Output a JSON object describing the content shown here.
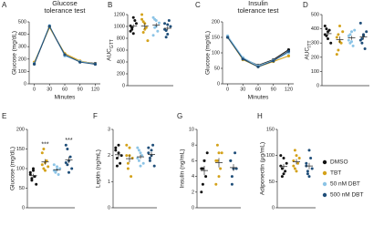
{
  "chart_data": [
    {
      "type": "line",
      "panel": "A",
      "title": [
        "Glucose",
        "tolerance test"
      ],
      "xlabel": "Minutes",
      "ylabel": "Glucose (mg/dL)",
      "x": [
        0,
        30,
        60,
        90,
        120
      ],
      "xlim": [
        -10,
        130
      ],
      "xticks": [
        0,
        30,
        60,
        90,
        120
      ],
      "ylim": [
        0,
        500
      ],
      "yticks": [
        0,
        100,
        200,
        300,
        400,
        500
      ],
      "series": [
        {
          "name": "DMSO",
          "color": "#111111",
          "values": [
            160,
            460,
            230,
            180,
            165
          ]
        },
        {
          "name": "TBT",
          "color": "#d4a21a",
          "values": [
            175,
            455,
            245,
            185,
            160
          ]
        },
        {
          "name": "50 nM DBT",
          "color": "#8cc4e6",
          "values": [
            165,
            470,
            225,
            180,
            160
          ]
        },
        {
          "name": "500 nM DBT",
          "color": "#1f4e79",
          "values": [
            160,
            465,
            235,
            175,
            158
          ]
        }
      ]
    },
    {
      "type": "dot",
      "panel": "B",
      "ylabel": "AUC",
      "ylabel_sub": "GTT",
      "ylim": [
        0,
        1200
      ],
      "yticks": [
        0,
        200,
        400,
        600,
        800,
        1000,
        1200
      ],
      "series": [
        {
          "color": "#111111",
          "values": [
            1010,
            950,
            880,
            1100,
            1050,
            920,
            980,
            1150
          ],
          "mean": 1005,
          "sem": 32
        },
        {
          "color": "#d4a21a",
          "values": [
            1200,
            900,
            1050,
            980,
            760,
            1120,
            1080,
            950
          ],
          "mean": 1005,
          "sem": 50
        },
        {
          "color": "#8cc4e6",
          "values": [
            1150,
            980,
            1100,
            920,
            1060,
            850,
            1120,
            1000
          ],
          "mean": 1022,
          "sem": 35
        },
        {
          "color": "#1f4e79",
          "values": [
            1050,
            930,
            870,
            1100,
            1000,
            950,
            820,
            1030
          ],
          "mean": 969,
          "sem": 32
        }
      ]
    },
    {
      "type": "line",
      "panel": "C",
      "title": [
        "Insulin",
        "tolerance test"
      ],
      "xlabel": "Minutes",
      "ylabel": "Glucose (mg/dL)",
      "x": [
        0,
        30,
        60,
        90,
        120
      ],
      "xlim": [
        -10,
        130
      ],
      "xticks": [
        0,
        30,
        60,
        90,
        120
      ],
      "ylim": [
        0,
        200
      ],
      "yticks": [
        0,
        50,
        100,
        150,
        200
      ],
      "series": [
        {
          "color": "#111111",
          "values": [
            152,
            82,
            60,
            78,
            110
          ]
        },
        {
          "color": "#d4a21a",
          "values": [
            150,
            78,
            55,
            72,
            90
          ]
        },
        {
          "color": "#8cc4e6",
          "values": [
            155,
            85,
            58,
            76,
            100
          ]
        },
        {
          "color": "#1f4e79",
          "values": [
            150,
            80,
            55,
            74,
            105
          ]
        }
      ]
    },
    {
      "type": "dot",
      "panel": "D",
      "ylabel": "AUC",
      "ylabel_sub": "ITT",
      "ylim": [
        0,
        500
      ],
      "yticks": [
        0,
        100,
        200,
        300,
        400,
        500
      ],
      "series": [
        {
          "color": "#111111",
          "values": [
            360,
            400,
            330,
            390,
            300,
            420,
            350,
            380
          ],
          "mean": 366,
          "sem": 14
        },
        {
          "color": "#d4a21a",
          "values": [
            340,
            250,
            420,
            300,
            380,
            220,
            360,
            310
          ],
          "mean": 323,
          "sem": 23
        },
        {
          "color": "#8cc4e6",
          "values": [
            350,
            300,
            380,
            280,
            390,
            320,
            360,
            310
          ],
          "mean": 336,
          "sem": 14
        },
        {
          "color": "#1f4e79",
          "values": [
            440,
            300,
            350,
            260,
            380,
            320,
            330,
            360
          ],
          "mean": 343,
          "sem": 19
        }
      ]
    },
    {
      "type": "dot",
      "panel": "E",
      "ylabel": "Glucose (mg/dL)",
      "ylim": [
        0,
        200
      ],
      "yticks": [
        0,
        50,
        100,
        150,
        200
      ],
      "series": [
        {
          "color": "#111111",
          "values": [
            85,
            70,
            95,
            80,
            60,
            90,
            75,
            100
          ],
          "mean": 82,
          "sem": 5
        },
        {
          "color": "#d4a21a",
          "values": [
            110,
            150,
            95,
            120,
            105,
            140,
            100,
            115
          ],
          "mean": 117,
          "sem": 7,
          "significance": "***"
        },
        {
          "color": "#8cc4e6",
          "values": [
            95,
            90,
            105,
            85,
            100,
            110,
            92,
            98
          ],
          "mean": 97,
          "sem": 3
        },
        {
          "color": "#1f4e79",
          "values": [
            115,
            150,
            90,
            130,
            100,
            160,
            110,
            120
          ],
          "mean": 122,
          "sem": 8,
          "significance": "***"
        }
      ]
    },
    {
      "type": "dot",
      "panel": "F",
      "ylabel": "Leptin (ng/mL)",
      "ylim": [
        0,
        3
      ],
      "yticks": [
        0,
        1,
        2,
        3
      ],
      "series": [
        {
          "color": "#111111",
          "values": [
            2.2,
            1.9,
            2.4,
            1.7,
            2.0,
            2.3,
            1.6,
            2.1
          ],
          "mean": 2.03,
          "sem": 0.1
        },
        {
          "color": "#d4a21a",
          "values": [
            2.0,
            1.5,
            2.3,
            1.2,
            1.9,
            2.4,
            1.7,
            2.0
          ],
          "mean": 1.88,
          "sem": 0.14
        },
        {
          "color": "#8cc4e6",
          "values": [
            1.9,
            2.2,
            1.6,
            2.0,
            1.7,
            2.3,
            1.8,
            2.1
          ],
          "mean": 1.95,
          "sem": 0.08
        },
        {
          "color": "#1f4e79",
          "values": [
            2.3,
            1.8,
            2.0,
            2.4,
            1.6,
            2.1,
            1.9,
            2.2
          ],
          "mean": 2.04,
          "sem": 0.09
        }
      ]
    },
    {
      "type": "dot",
      "panel": "G",
      "ylabel": "Insulin (ng/mL)",
      "ylim": [
        0,
        10
      ],
      "yticks": [
        0,
        2,
        4,
        6,
        8,
        10
      ],
      "series": [
        {
          "color": "#111111",
          "values": [
            5,
            3,
            6,
            4,
            7,
            2,
            5,
            6
          ],
          "mean": 4.75,
          "sem": 0.6
        },
        {
          "color": "#d4a21a",
          "values": [
            6,
            8,
            4,
            5,
            7,
            3,
            6,
            7
          ],
          "mean": 5.75,
          "sem": 0.6
        },
        {
          "color": "#1f4e79",
          "values": [
            6,
            4,
            5,
            7,
            5,
            6,
            3,
            5
          ],
          "mean": 5.13,
          "sem": 0.44
        }
      ]
    },
    {
      "type": "dot",
      "panel": "H",
      "ylabel": "Adiponectin (μg/mL)",
      "ylim": [
        0,
        150
      ],
      "yticks": [
        0,
        50,
        100,
        150
      ],
      "series": [
        {
          "color": "#111111",
          "values": [
            80,
            60,
            95,
            70,
            85,
            100,
            75,
            65
          ],
          "mean": 79,
          "sem": 5
        },
        {
          "color": "#d4a21a",
          "values": [
            90,
            75,
            100,
            85,
            95,
            80,
            110,
            70
          ],
          "mean": 88,
          "sem": 5
        },
        {
          "color": "#1f4e79",
          "values": [
            85,
            70,
            60,
            95,
            75,
            80,
            65,
            110
          ],
          "mean": 80,
          "sem": 6
        }
      ]
    }
  ]
}
